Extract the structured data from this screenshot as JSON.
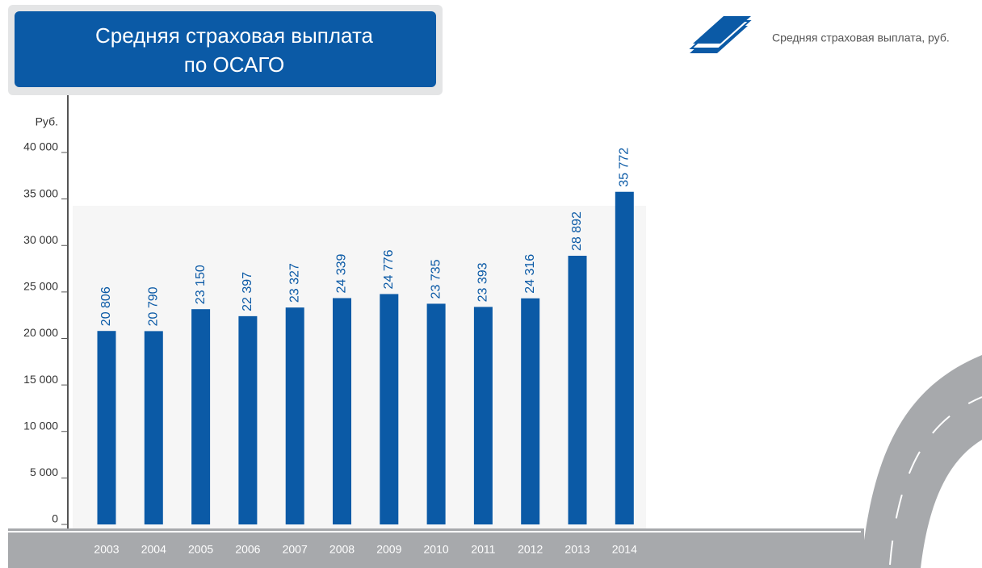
{
  "chart_data": {
    "type": "bar",
    "title": [
      "Средняя страховая выплата",
      "по ОСАГО"
    ],
    "legend_label": "Средняя страховая выплата, руб.",
    "y_label": "Руб.",
    "categories": [
      "2003",
      "2004",
      "2005",
      "2006",
      "2007",
      "2008",
      "2009",
      "2010",
      "2011",
      "2012",
      "2013",
      "2014"
    ],
    "values": [
      20806,
      20790,
      23150,
      22397,
      23327,
      24339,
      24776,
      23735,
      23393,
      24316,
      28892,
      35772
    ],
    "value_labels": [
      "20 806",
      "20 790",
      "23 150",
      "22 397",
      "23 327",
      "24 339",
      "24 776",
      "23 735",
      "23 393",
      "24 316",
      "28 892",
      "35 772"
    ],
    "color": "#0b5aa6",
    "ylim": [
      0,
      40000
    ],
    "yticks": [
      {
        "value": 0,
        "label": "0"
      },
      {
        "value": 5000,
        "label": "5 000"
      },
      {
        "value": 10000,
        "label": "10 000"
      },
      {
        "value": 15000,
        "label": "15 000"
      },
      {
        "value": 20000,
        "label": "20 000"
      },
      {
        "value": 25000,
        "label": "25 000"
      },
      {
        "value": 30000,
        "label": "30 000"
      },
      {
        "value": 35000,
        "label": "35 000"
      },
      {
        "value": 40000,
        "label": "40 000"
      }
    ]
  }
}
